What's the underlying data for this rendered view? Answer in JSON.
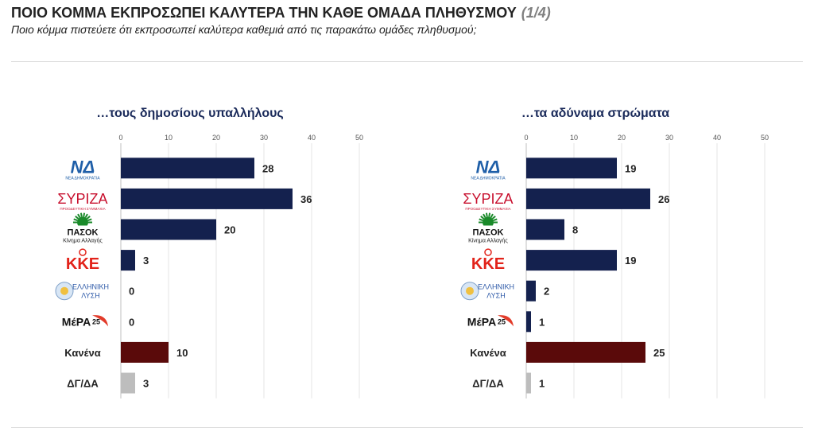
{
  "header": {
    "title": "ΠΟΙΟ ΚΟΜΜΑ ΕΚΠΡΟΣΩΠΕΙ ΚΑΛΥΤΕΡΑ ΤΗΝ ΚΑΘΕ ΟΜΑΔΑ ΠΛΗΘΥΣΜΟΥ",
    "page": "(1/4)",
    "subtitle": "Ποιο κόμμα πιστεύετε ότι εκπροσωπεί καλύτερα καθεμιά από τις παρακάτω ομάδες πληθυσμού;"
  },
  "colors": {
    "party_bar": "#14214e",
    "none_bar": "#5a0a0a",
    "dk_bar": "#bdbdbd",
    "nd_blue": "#1f5fa8",
    "syriza_red": "#c8102e",
    "pasok_green": "#1a8a2a",
    "kke_red": "#e2231a",
    "elliniki_blue": "#2e5aa8",
    "mera_red": "#e23b2a"
  },
  "logos": {
    "nd": {
      "mark": "ΝΔ",
      "sub": "ΝΕΑ ΔΗΜΟΚΡΑΤΙΑ"
    },
    "syriza": {
      "mark": "ΣΥΡΙΖΑ",
      "sub": "ΠΡΟΟΔΕΥΤΙΚΗ ΣΥΜΜΑΧΙΑ"
    },
    "pasok": {
      "mark": "ΠΑΣΟΚ",
      "sub": "Κίνημα Αλλαγής"
    },
    "kke": {
      "mark": "ΚΚΕ"
    },
    "elliniki": {
      "mark1": "ΕΛΛΗΝΙΚΗ",
      "mark2": "ΛΥΣΗ"
    },
    "mera": {
      "mark": "ΜέΡΑ",
      "num": "25"
    }
  },
  "chart_data": [
    {
      "type": "bar",
      "orientation": "horizontal",
      "title": "…τους δημοσίους υπαλλήλους",
      "xlim": [
        0,
        50
      ],
      "xticks": [
        0,
        10,
        20,
        30,
        40,
        50
      ],
      "categories": [
        "ΝΔ",
        "ΣΥΡΙΖΑ",
        "ΠΑΣΟΚ",
        "ΚΚΕ",
        "ΕΛΛΗΝΙΚΗ ΛΥΣΗ",
        "ΜέΡΑ25",
        "Κανένα",
        "ΔΓ/ΔΑ"
      ],
      "values": [
        28,
        36,
        20,
        3,
        0,
        0,
        10,
        3
      ]
    },
    {
      "type": "bar",
      "orientation": "horizontal",
      "title": "…τα αδύναμα στρώματα",
      "xlim": [
        0,
        50
      ],
      "xticks": [
        0,
        10,
        20,
        30,
        40,
        50
      ],
      "categories": [
        "ΝΔ",
        "ΣΥΡΙΖΑ",
        "ΠΑΣΟΚ",
        "ΚΚΕ",
        "ΕΛΛΗΝΙΚΗ ΛΥΣΗ",
        "ΜέΡΑ25",
        "Κανένα",
        "ΔΓ/ΔΑ"
      ],
      "values": [
        19,
        26,
        8,
        19,
        2,
        1,
        25,
        1
      ]
    }
  ],
  "text_categories": [
    "Κανένα",
    "ΔΓ/ΔΑ"
  ]
}
